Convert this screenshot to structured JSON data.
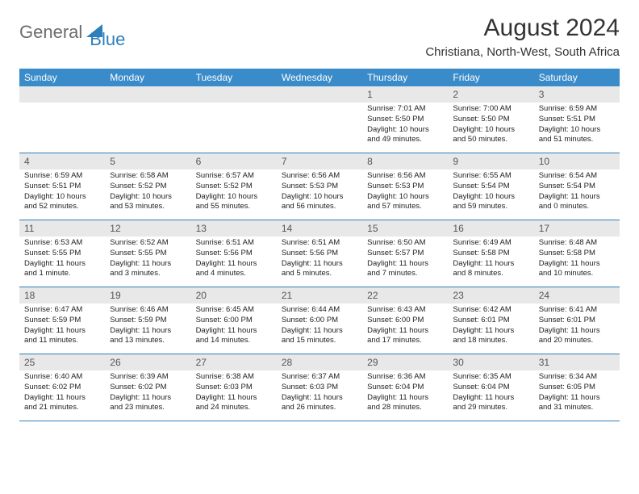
{
  "logo": {
    "text1": "General",
    "text2": "Blue"
  },
  "title": "August 2024",
  "location": "Christiana, North-West, South Africa",
  "colors": {
    "header_bg": "#3a8bc9",
    "border": "#2f7fba",
    "daynum_bg": "#e8e8e8",
    "text": "#222222",
    "logo_gray": "#6b6b6b",
    "logo_blue": "#2f7fba"
  },
  "weekdays": [
    "Sunday",
    "Monday",
    "Tuesday",
    "Wednesday",
    "Thursday",
    "Friday",
    "Saturday"
  ],
  "weeks": [
    [
      {
        "n": "",
        "sr": "",
        "ss": "",
        "dl": ""
      },
      {
        "n": "",
        "sr": "",
        "ss": "",
        "dl": ""
      },
      {
        "n": "",
        "sr": "",
        "ss": "",
        "dl": ""
      },
      {
        "n": "",
        "sr": "",
        "ss": "",
        "dl": ""
      },
      {
        "n": "1",
        "sr": "Sunrise: 7:01 AM",
        "ss": "Sunset: 5:50 PM",
        "dl": "Daylight: 10 hours and 49 minutes."
      },
      {
        "n": "2",
        "sr": "Sunrise: 7:00 AM",
        "ss": "Sunset: 5:50 PM",
        "dl": "Daylight: 10 hours and 50 minutes."
      },
      {
        "n": "3",
        "sr": "Sunrise: 6:59 AM",
        "ss": "Sunset: 5:51 PM",
        "dl": "Daylight: 10 hours and 51 minutes."
      }
    ],
    [
      {
        "n": "4",
        "sr": "Sunrise: 6:59 AM",
        "ss": "Sunset: 5:51 PM",
        "dl": "Daylight: 10 hours and 52 minutes."
      },
      {
        "n": "5",
        "sr": "Sunrise: 6:58 AM",
        "ss": "Sunset: 5:52 PM",
        "dl": "Daylight: 10 hours and 53 minutes."
      },
      {
        "n": "6",
        "sr": "Sunrise: 6:57 AM",
        "ss": "Sunset: 5:52 PM",
        "dl": "Daylight: 10 hours and 55 minutes."
      },
      {
        "n": "7",
        "sr": "Sunrise: 6:56 AM",
        "ss": "Sunset: 5:53 PM",
        "dl": "Daylight: 10 hours and 56 minutes."
      },
      {
        "n": "8",
        "sr": "Sunrise: 6:56 AM",
        "ss": "Sunset: 5:53 PM",
        "dl": "Daylight: 10 hours and 57 minutes."
      },
      {
        "n": "9",
        "sr": "Sunrise: 6:55 AM",
        "ss": "Sunset: 5:54 PM",
        "dl": "Daylight: 10 hours and 59 minutes."
      },
      {
        "n": "10",
        "sr": "Sunrise: 6:54 AM",
        "ss": "Sunset: 5:54 PM",
        "dl": "Daylight: 11 hours and 0 minutes."
      }
    ],
    [
      {
        "n": "11",
        "sr": "Sunrise: 6:53 AM",
        "ss": "Sunset: 5:55 PM",
        "dl": "Daylight: 11 hours and 1 minute."
      },
      {
        "n": "12",
        "sr": "Sunrise: 6:52 AM",
        "ss": "Sunset: 5:55 PM",
        "dl": "Daylight: 11 hours and 3 minutes."
      },
      {
        "n": "13",
        "sr": "Sunrise: 6:51 AM",
        "ss": "Sunset: 5:56 PM",
        "dl": "Daylight: 11 hours and 4 minutes."
      },
      {
        "n": "14",
        "sr": "Sunrise: 6:51 AM",
        "ss": "Sunset: 5:56 PM",
        "dl": "Daylight: 11 hours and 5 minutes."
      },
      {
        "n": "15",
        "sr": "Sunrise: 6:50 AM",
        "ss": "Sunset: 5:57 PM",
        "dl": "Daylight: 11 hours and 7 minutes."
      },
      {
        "n": "16",
        "sr": "Sunrise: 6:49 AM",
        "ss": "Sunset: 5:58 PM",
        "dl": "Daylight: 11 hours and 8 minutes."
      },
      {
        "n": "17",
        "sr": "Sunrise: 6:48 AM",
        "ss": "Sunset: 5:58 PM",
        "dl": "Daylight: 11 hours and 10 minutes."
      }
    ],
    [
      {
        "n": "18",
        "sr": "Sunrise: 6:47 AM",
        "ss": "Sunset: 5:59 PM",
        "dl": "Daylight: 11 hours and 11 minutes."
      },
      {
        "n": "19",
        "sr": "Sunrise: 6:46 AM",
        "ss": "Sunset: 5:59 PM",
        "dl": "Daylight: 11 hours and 13 minutes."
      },
      {
        "n": "20",
        "sr": "Sunrise: 6:45 AM",
        "ss": "Sunset: 6:00 PM",
        "dl": "Daylight: 11 hours and 14 minutes."
      },
      {
        "n": "21",
        "sr": "Sunrise: 6:44 AM",
        "ss": "Sunset: 6:00 PM",
        "dl": "Daylight: 11 hours and 15 minutes."
      },
      {
        "n": "22",
        "sr": "Sunrise: 6:43 AM",
        "ss": "Sunset: 6:00 PM",
        "dl": "Daylight: 11 hours and 17 minutes."
      },
      {
        "n": "23",
        "sr": "Sunrise: 6:42 AM",
        "ss": "Sunset: 6:01 PM",
        "dl": "Daylight: 11 hours and 18 minutes."
      },
      {
        "n": "24",
        "sr": "Sunrise: 6:41 AM",
        "ss": "Sunset: 6:01 PM",
        "dl": "Daylight: 11 hours and 20 minutes."
      }
    ],
    [
      {
        "n": "25",
        "sr": "Sunrise: 6:40 AM",
        "ss": "Sunset: 6:02 PM",
        "dl": "Daylight: 11 hours and 21 minutes."
      },
      {
        "n": "26",
        "sr": "Sunrise: 6:39 AM",
        "ss": "Sunset: 6:02 PM",
        "dl": "Daylight: 11 hours and 23 minutes."
      },
      {
        "n": "27",
        "sr": "Sunrise: 6:38 AM",
        "ss": "Sunset: 6:03 PM",
        "dl": "Daylight: 11 hours and 24 minutes."
      },
      {
        "n": "28",
        "sr": "Sunrise: 6:37 AM",
        "ss": "Sunset: 6:03 PM",
        "dl": "Daylight: 11 hours and 26 minutes."
      },
      {
        "n": "29",
        "sr": "Sunrise: 6:36 AM",
        "ss": "Sunset: 6:04 PM",
        "dl": "Daylight: 11 hours and 28 minutes."
      },
      {
        "n": "30",
        "sr": "Sunrise: 6:35 AM",
        "ss": "Sunset: 6:04 PM",
        "dl": "Daylight: 11 hours and 29 minutes."
      },
      {
        "n": "31",
        "sr": "Sunrise: 6:34 AM",
        "ss": "Sunset: 6:05 PM",
        "dl": "Daylight: 11 hours and 31 minutes."
      }
    ]
  ]
}
